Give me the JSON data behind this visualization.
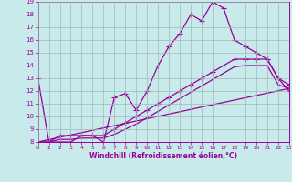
{
  "xlabel": "Windchill (Refroidissement éolien,°C)",
  "xlim": [
    0,
    23
  ],
  "ylim": [
    8,
    19
  ],
  "xticks": [
    0,
    1,
    2,
    3,
    4,
    5,
    6,
    7,
    8,
    9,
    10,
    11,
    12,
    13,
    14,
    15,
    16,
    17,
    18,
    19,
    20,
    21,
    22,
    23
  ],
  "yticks": [
    8,
    9,
    10,
    11,
    12,
    13,
    14,
    15,
    16,
    17,
    18,
    19
  ],
  "background_color": "#c8eaea",
  "line_color": "#990099",
  "grid_color": "#a0b8b8",
  "line1_x": [
    0,
    1,
    2,
    3,
    4,
    5,
    6,
    7,
    8,
    9,
    10,
    11,
    12,
    13,
    14,
    15,
    16,
    17,
    18,
    19,
    20,
    21,
    22,
    23
  ],
  "line1_y": [
    13,
    8,
    8,
    8,
    8.5,
    8.5,
    8,
    11.5,
    11.8,
    10.5,
    12,
    14,
    15.5,
    16.5,
    18,
    17.5,
    19,
    18.5,
    16,
    15.5,
    15,
    14.5,
    13,
    12
  ],
  "line2_x": [
    0,
    1,
    2,
    3,
    4,
    5,
    6,
    7,
    8,
    9,
    10,
    11,
    12,
    13,
    14,
    15,
    16,
    17,
    18,
    19,
    20,
    21,
    22,
    23
  ],
  "line2_y": [
    8,
    8,
    8.5,
    8.5,
    8.5,
    8.5,
    8.5,
    9.0,
    9.5,
    10.0,
    10.5,
    11.0,
    11.5,
    12.0,
    12.5,
    13.0,
    13.5,
    14.0,
    14.5,
    14.5,
    14.5,
    14.5,
    13.0,
    12.5
  ],
  "line3_x": [
    0,
    1,
    2,
    3,
    4,
    5,
    6,
    7,
    8,
    9,
    10,
    11,
    12,
    13,
    14,
    15,
    16,
    17,
    18,
    19,
    20,
    21,
    22,
    23
  ],
  "line3_y": [
    8,
    8,
    8.2,
    8.2,
    8.3,
    8.3,
    8.3,
    8.6,
    9.0,
    9.4,
    9.9,
    10.4,
    10.9,
    11.4,
    11.9,
    12.4,
    12.9,
    13.4,
    13.9,
    14.0,
    14.0,
    14.0,
    12.5,
    12.2
  ],
  "line4_x": [
    0,
    23
  ],
  "line4_y": [
    8,
    12.2
  ],
  "marker": "+",
  "markersize": 4,
  "linewidth": 0.9
}
